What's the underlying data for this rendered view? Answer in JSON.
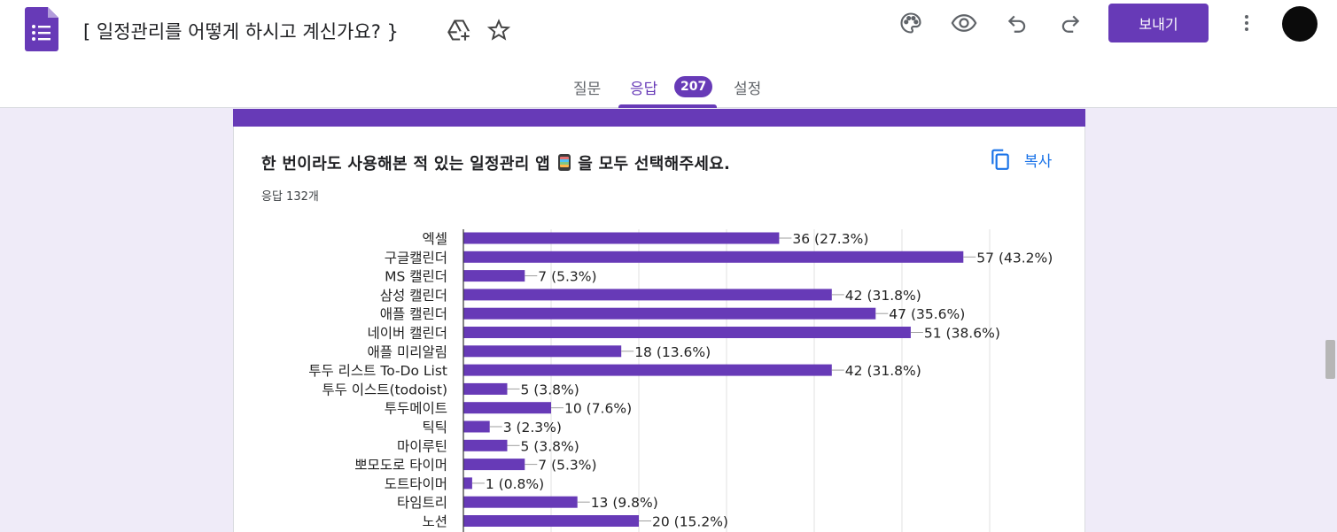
{
  "header": {
    "title": "[ 일정관리를 어떻게 하시고 계신가요? }",
    "send_label": "보내기",
    "icons": [
      "forms-logo-icon",
      "drive-add-icon",
      "star-icon",
      "palette-icon",
      "eye-icon",
      "undo-icon",
      "redo-icon",
      "more-vert-icon"
    ]
  },
  "tabs": {
    "questions": "질문",
    "responses": "응답",
    "responses_count": "207",
    "settings": "설정"
  },
  "question": {
    "title_before": "한 번이라도 사용해본 적 있는 일정관리 앱",
    "title_after": "을 모두 선택해주세요.",
    "response_count": "응답 132개",
    "copy_label": "복사"
  },
  "colors": {
    "accent": "#673ab7",
    "link": "#1a73e8"
  },
  "chart_data": {
    "type": "bar",
    "orientation": "horizontal",
    "categories": [
      "엑셀",
      "구글캘린더",
      "MS 캘린더",
      "삼성 캘린더",
      "애플 캘린더",
      "네이버 캘린더",
      "애플 미리알림",
      "투두 리스트 To-Do List",
      "투두 이스트(todoist)",
      "투두메이트",
      "틱틱",
      "마이루틴",
      "뽀모도로 타이머",
      "도트타이머",
      "타임트리",
      "노션"
    ],
    "values": [
      36,
      57,
      7,
      42,
      47,
      51,
      18,
      42,
      5,
      10,
      3,
      5,
      7,
      1,
      13,
      20
    ],
    "labels": [
      "36 (27.3%)",
      "57 (43.2%)",
      "7 (5.3%)",
      "42 (31.8%)",
      "47 (35.6%)",
      "51 (38.6%)",
      "18 (13.6%)",
      "42 (31.8%)",
      "5 (3.8%)",
      "10 (7.6%)",
      "3 (2.3%)",
      "5 (3.8%)",
      "7 (5.3%)",
      "1 (0.8%)",
      "13 (9.8%)",
      "20 (15.2%)"
    ],
    "xlim": [
      0,
      60
    ],
    "grid": true,
    "bar_color": "#673ab7"
  }
}
